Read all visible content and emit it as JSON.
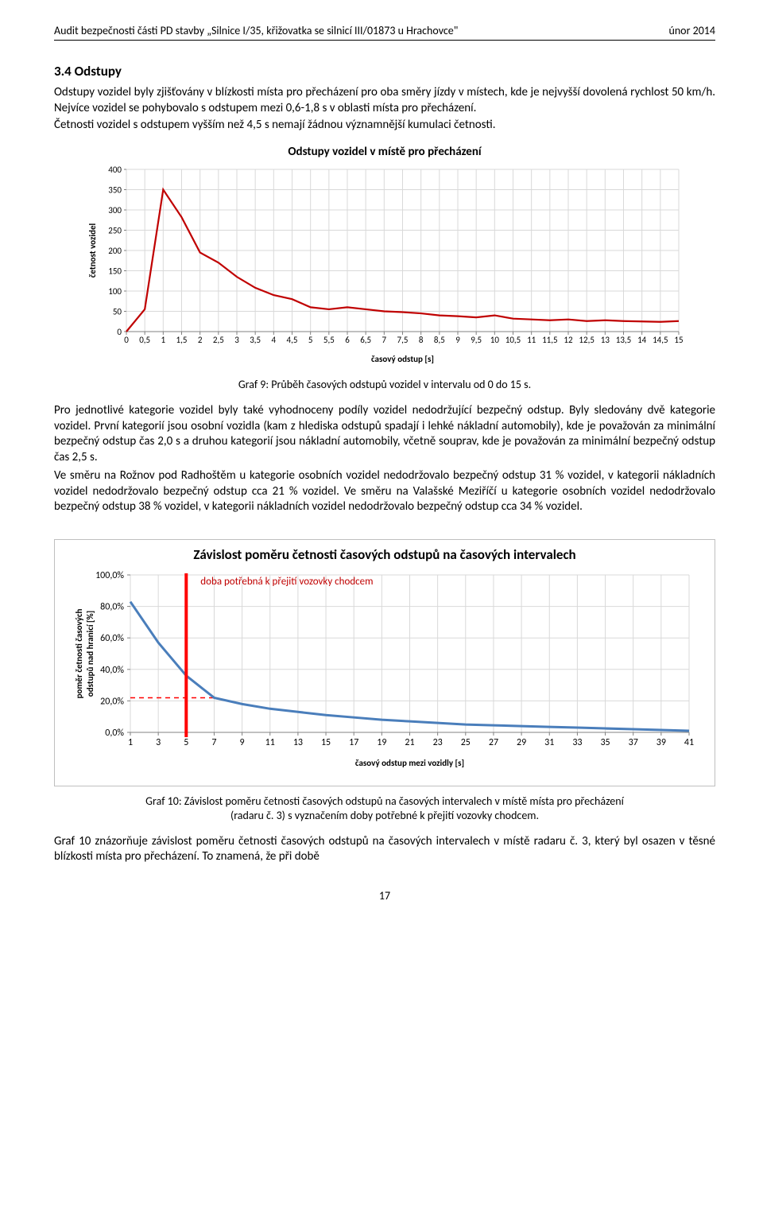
{
  "header": {
    "left": "Audit bezpečnosti části PD stavby „Silnice I/35, křižovatka se silnicí III/01873 u Hrachovce\"",
    "right": "únor 2014"
  },
  "section_heading": "3.4 Odstupy",
  "para1": "Odstupy vozidel byly zjišťovány v blízkosti místa pro přecházení pro oba směry jízdy v místech, kde je nejvyšší dovolená rychlost 50 km/h. Nejvíce vozidel se pohybovalo s odstupem mezi 0,6-1,8 s v oblasti místa pro přecházení.",
  "para1b": "Četnosti vozidel s odstupem vyšším než 4,5 s nemají žádnou významnější kumulaci četnosti.",
  "chart1": {
    "title": "Odstupy vozidel v místě pro přecházení",
    "ylabel": "četnost vozidel",
    "xlabel": "časový odstup [s]",
    "x_ticks": [
      "0",
      "0,5",
      "1",
      "1,5",
      "2",
      "2,5",
      "3",
      "3,5",
      "4",
      "4,5",
      "5",
      "5,5",
      "6",
      "6,5",
      "7",
      "7,5",
      "8",
      "8,5",
      "9",
      "9,5",
      "10",
      "10,5",
      "11",
      "11,5",
      "12",
      "12,5",
      "13",
      "13,5",
      "14",
      "14,5",
      "15"
    ],
    "y_ticks": [
      0,
      50,
      100,
      150,
      200,
      250,
      300,
      350,
      400
    ],
    "ylim": [
      0,
      400
    ],
    "series": {
      "color": "#c00000",
      "line_width": 2.2,
      "values": [
        0,
        55,
        350,
        282,
        195,
        170,
        135,
        108,
        90,
        80,
        60,
        55,
        60,
        55,
        50,
        48,
        45,
        40,
        38,
        35,
        40,
        32,
        30,
        28,
        30,
        26,
        28,
        26,
        25,
        24,
        26
      ]
    },
    "grid_color": "#d9d9d9",
    "background": "#ffffff"
  },
  "caption1": "Graf 9:  Průběh časových odstupů vozidel v intervalu od 0 do 15 s.",
  "para2": "Pro jednotlivé kategorie vozidel byly také vyhodnoceny podíly vozidel nedodržující bezpečný odstup. Byly sledovány dvě kategorie vozidel. První kategorií jsou osobní vozidla (kam z hlediska odstupů spadají i lehké nákladní automobily), kde je považován za minimální bezpečný odstup čas 2,0 s a druhou kategorií jsou nákladní automobily, včetně souprav, kde je považován za minimální bezpečný odstup čas 2,5 s.",
  "para3": "Ve směru na Rožnov pod Radhoštěm u kategorie osobních vozidel nedodržovalo bezpečný odstup 31 % vozidel, v kategorii nákladních vozidel nedodržovalo bezpečný odstup cca 21 % vozidel. Ve směru na Valašské Meziříčí u kategorie osobních vozidel nedodržovalo bezpečný odstup 38 % vozidel, v kategorii nákladních vozidel nedodržovalo bezpečný odstup cca 34 % vozidel.",
  "chart2": {
    "title": "Závislost poměru četnosti časových odstupů na časových intervalech",
    "ylabel": "poměr četnosti časových odstupů nad hranicí [%]",
    "xlabel": "časový odstup mezi vozidly [s]",
    "x_ticks": [
      1,
      3,
      5,
      7,
      9,
      11,
      13,
      15,
      17,
      19,
      21,
      23,
      25,
      27,
      29,
      31,
      33,
      35,
      37,
      39,
      41
    ],
    "y_ticks": [
      "0,0%",
      "20,0%",
      "40,0%",
      "60,0%",
      "80,0%",
      "100,0%"
    ],
    "ylim": [
      0,
      100
    ],
    "series": {
      "color": "#4a7ebb",
      "line_width": 3,
      "x": [
        1,
        3,
        5,
        7,
        9,
        11,
        13,
        15,
        17,
        19,
        21,
        23,
        25,
        27,
        29,
        31,
        33,
        35,
        37,
        39,
        41
      ],
      "y": [
        83,
        57,
        36,
        22,
        18,
        15,
        13,
        11,
        9.5,
        8,
        7,
        6,
        5,
        4.5,
        4,
        3.5,
        3,
        2.5,
        2,
        1.5,
        1
      ]
    },
    "vline": {
      "x": 5,
      "color": "#ff0000",
      "width": 4
    },
    "hline": {
      "y": 22,
      "color": "#ff0000",
      "dash": "6,5",
      "to_x": 7
    },
    "annotation": "doba potřebná k přejití vozovky chodcem",
    "grid_color": "#d9d9d9",
    "background": "#ffffff"
  },
  "caption2_line1": "Graf 10:  Závislost poměru četnosti časových odstupů na časových intervalech v místě místa pro přecházení",
  "caption2_line2": "(radaru č. 3) s vyznačením doby potřebné k přejití vozovky chodcem.",
  "para4": "Graf 10 znázorňuje závislost poměru četnosti časových odstupů na časových intervalech v místě radaru č. 3, který byl osazen v těsné blízkosti místa pro přecházení. To znamená, že při době",
  "page_number": "17"
}
